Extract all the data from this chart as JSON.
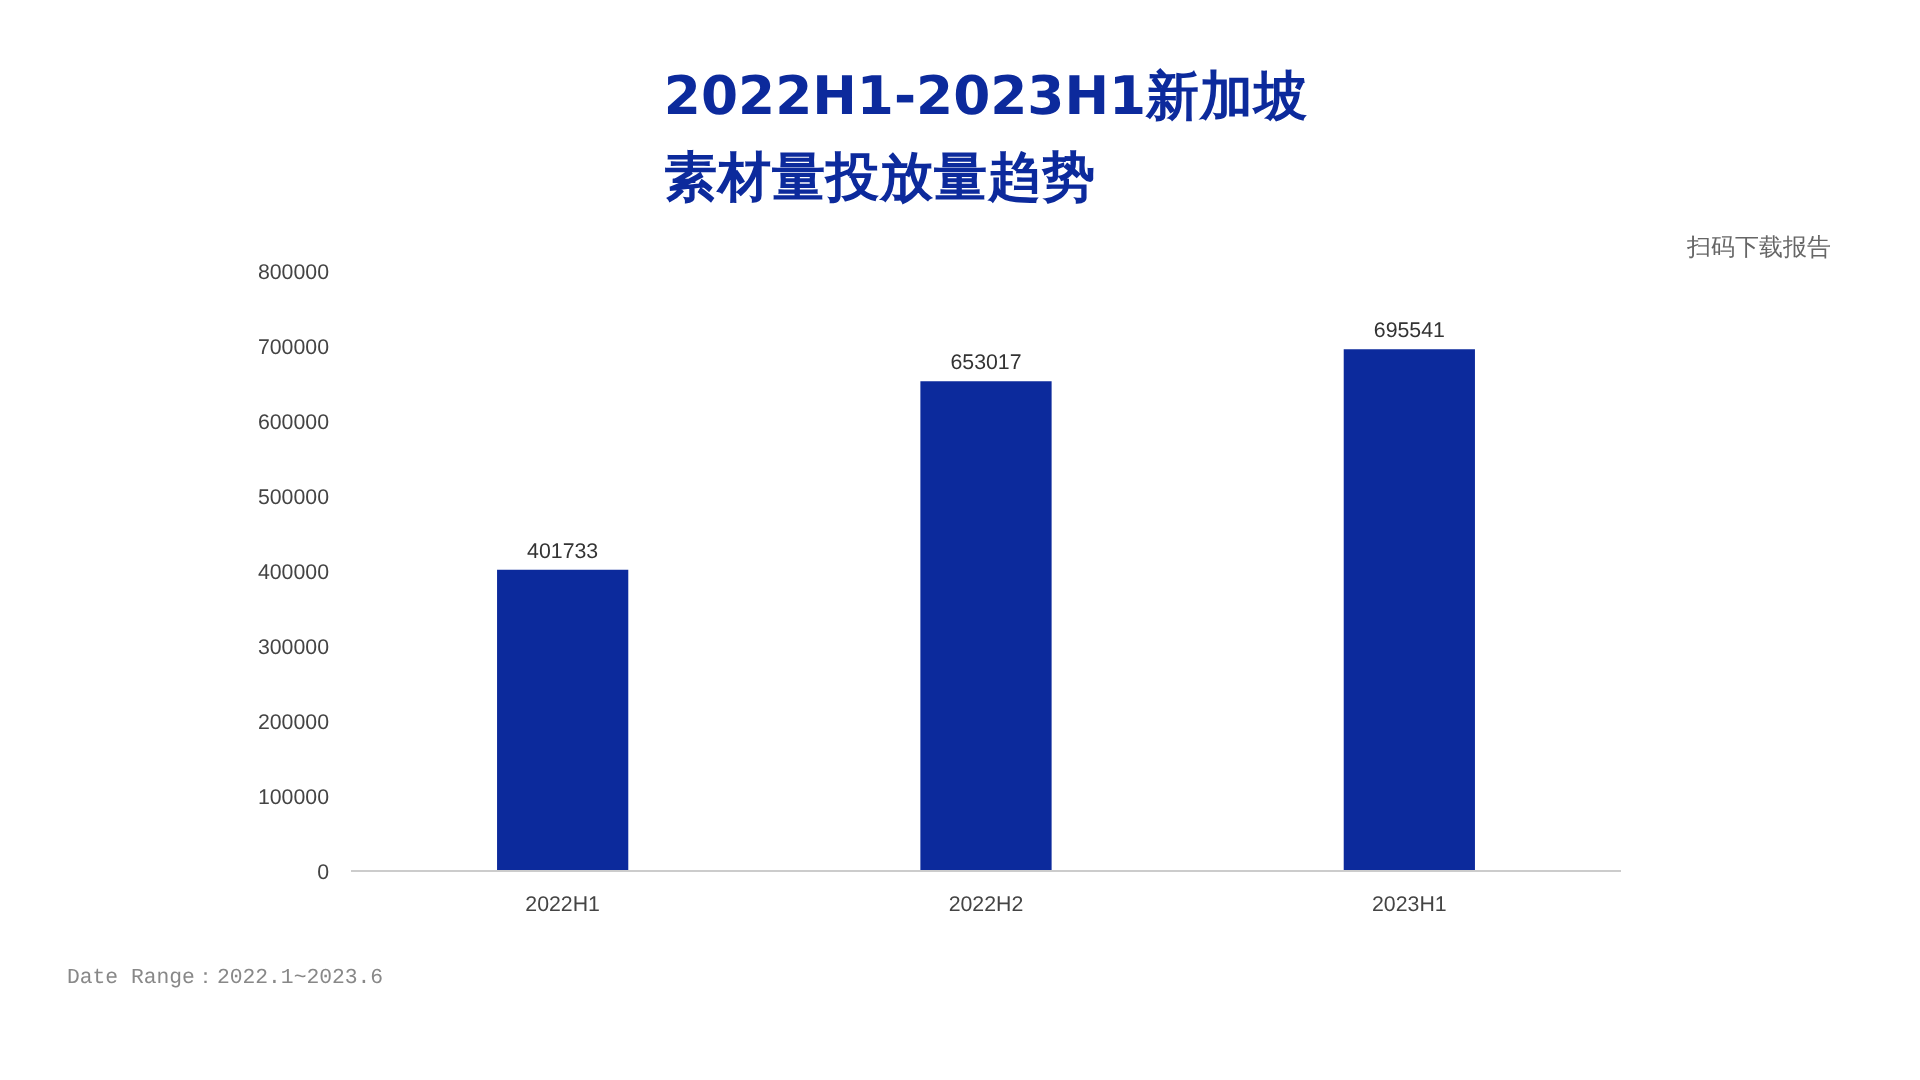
{
  "chart_data": {
    "type": "bar",
    "title": "2022H1-2023H1新加坡素材量投放量趋势",
    "categories": [
      "2022H1",
      "2022H2",
      "2023H1"
    ],
    "values": [
      401733,
      653017,
      695541
    ],
    "color": "#0c2a9c",
    "ylim": [
      0,
      800000
    ],
    "yticks": [
      0,
      100000,
      200000,
      300000,
      400000,
      500000,
      600000,
      700000,
      800000
    ],
    "data_labels": true,
    "grid": false,
    "annotations": [
      "扫码下载报告",
      "Date Range：2022.1~2023.6"
    ]
  }
}
